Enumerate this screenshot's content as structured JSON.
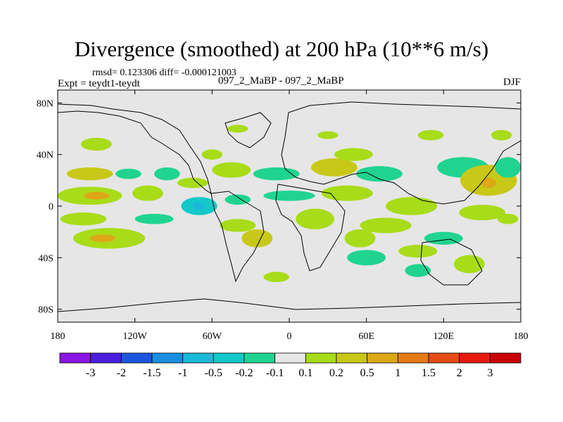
{
  "chart_data": {
    "type": "heatmap",
    "title": "Divergence (smoothed) at 200 hPa (10**6 m/s)",
    "stats_text": "rmsd= 0.123306 diff= -0.000121003",
    "left_label": "Expt = teydt1-teydt",
    "center_label": "097_2_MaBP - 097_2_MaBP",
    "right_label": "DJF",
    "x_axis": {
      "range": [
        -180,
        180
      ],
      "ticks": [
        -180,
        -120,
        -60,
        0,
        60,
        120,
        180
      ],
      "tick_labels": [
        "180",
        "120W",
        "60W",
        "0",
        "60E",
        "120E",
        "180"
      ]
    },
    "y_axis": {
      "range": [
        -90,
        90
      ],
      "ticks": [
        80,
        40,
        0,
        -40,
        -80
      ],
      "tick_labels": [
        "80N",
        "40N",
        "0",
        "40S",
        "80S"
      ]
    },
    "colorbar": {
      "labels": [
        "-3",
        "-2",
        "-1.5",
        "-1",
        "-0.5",
        "-0.2",
        "-0.1",
        "0.1",
        "0.2",
        "0.5",
        "1",
        "1.5",
        "2",
        "3"
      ],
      "colors": [
        "#8a16e6",
        "#4b1fe0",
        "#1c56e0",
        "#1a8fe0",
        "#1ab8d8",
        "#12c8c8",
        "#20d490",
        "#e6e6e6",
        "#a8dc18",
        "#c8c818",
        "#dca818",
        "#e67a18",
        "#e64c18",
        "#e61a10",
        "#cc0000"
      ]
    },
    "grid": false,
    "field_blobs": [
      {
        "lon": -155,
        "lat": 25,
        "rlon": 18,
        "rlat": 5,
        "level": 2
      },
      {
        "lon": -155,
        "lat": 8,
        "rlon": 25,
        "rlat": 7,
        "level": 1
      },
      {
        "lon": -150,
        "lat": 8,
        "rlon": 10,
        "rlat": 3,
        "level": 3
      },
      {
        "lon": -160,
        "lat": -10,
        "rlon": 18,
        "rlat": 5,
        "level": 1
      },
      {
        "lon": -140,
        "lat": -25,
        "rlon": 28,
        "rlat": 8,
        "level": 1
      },
      {
        "lon": -145,
        "lat": -25,
        "rlon": 10,
        "rlat": 3,
        "level": 3
      },
      {
        "lon": -150,
        "lat": 48,
        "rlon": 12,
        "rlat": 5,
        "level": 1
      },
      {
        "lon": -125,
        "lat": 25,
        "rlon": 10,
        "rlat": 4,
        "level": -1
      },
      {
        "lon": -110,
        "lat": 10,
        "rlon": 12,
        "rlat": 6,
        "level": 1
      },
      {
        "lon": -105,
        "lat": -10,
        "rlon": 15,
        "rlat": 4,
        "level": -1
      },
      {
        "lon": -95,
        "lat": 25,
        "rlon": 10,
        "rlat": 5,
        "level": -1
      },
      {
        "lon": -75,
        "lat": 18,
        "rlon": 12,
        "rlat": 4,
        "level": 1
      },
      {
        "lon": -70,
        "lat": 0,
        "rlon": 14,
        "rlat": 7,
        "level": -2
      },
      {
        "lon": -70,
        "lat": 0,
        "rlon": 5,
        "rlat": 3,
        "level": -3
      },
      {
        "lon": -45,
        "lat": 28,
        "rlon": 15,
        "rlat": 6,
        "level": 1
      },
      {
        "lon": -40,
        "lat": 5,
        "rlon": 10,
        "rlat": 4,
        "level": -1
      },
      {
        "lon": -40,
        "lat": -15,
        "rlon": 14,
        "rlat": 5,
        "level": 1
      },
      {
        "lon": -25,
        "lat": -25,
        "rlon": 12,
        "rlat": 7,
        "level": 2
      },
      {
        "lon": -10,
        "lat": 25,
        "rlon": 18,
        "rlat": 5,
        "level": -1
      },
      {
        "lon": -60,
        "lat": 40,
        "rlon": 8,
        "rlat": 4,
        "level": 1
      },
      {
        "lon": 0,
        "lat": 8,
        "rlon": 20,
        "rlat": 4,
        "level": -1
      },
      {
        "lon": 20,
        "lat": -10,
        "rlon": 15,
        "rlat": 8,
        "level": 1
      },
      {
        "lon": 35,
        "lat": 30,
        "rlon": 18,
        "rlat": 7,
        "level": 2
      },
      {
        "lon": 50,
        "lat": 40,
        "rlon": 15,
        "rlat": 5,
        "level": 1
      },
      {
        "lon": 45,
        "lat": 10,
        "rlon": 20,
        "rlat": 6,
        "level": 1
      },
      {
        "lon": 70,
        "lat": 25,
        "rlon": 18,
        "rlat": 6,
        "level": -1
      },
      {
        "lon": 75,
        "lat": -15,
        "rlon": 20,
        "rlat": 6,
        "level": 1
      },
      {
        "lon": 55,
        "lat": -25,
        "rlon": 12,
        "rlat": 7,
        "level": 1
      },
      {
        "lon": 60,
        "lat": -40,
        "rlon": 15,
        "rlat": 6,
        "level": -1
      },
      {
        "lon": 95,
        "lat": 0,
        "rlon": 20,
        "rlat": 7,
        "level": 1
      },
      {
        "lon": 100,
        "lat": -35,
        "rlon": 15,
        "rlat": 5,
        "level": 1
      },
      {
        "lon": 120,
        "lat": -25,
        "rlon": 15,
        "rlat": 5,
        "level": -1
      },
      {
        "lon": 135,
        "lat": 30,
        "rlon": 20,
        "rlat": 8,
        "level": -1
      },
      {
        "lon": 155,
        "lat": 20,
        "rlon": 22,
        "rlat": 12,
        "level": 2
      },
      {
        "lon": 155,
        "lat": 18,
        "rlon": 6,
        "rlat": 4,
        "level": 3
      },
      {
        "lon": 170,
        "lat": 30,
        "rlon": 10,
        "rlat": 8,
        "level": -1
      },
      {
        "lon": 150,
        "lat": -5,
        "rlon": 18,
        "rlat": 6,
        "level": 1
      },
      {
        "lon": 140,
        "lat": -45,
        "rlon": 12,
        "rlat": 7,
        "level": 1
      },
      {
        "lon": 170,
        "lat": -10,
        "rlon": 8,
        "rlat": 4,
        "level": 1
      },
      {
        "lon": 110,
        "lat": 55,
        "rlon": 10,
        "rlat": 4,
        "level": 1
      },
      {
        "lon": 165,
        "lat": 55,
        "rlon": 8,
        "rlat": 4,
        "level": 1
      },
      {
        "lon": -40,
        "lat": 60,
        "rlon": 8,
        "rlat": 3,
        "level": 1
      },
      {
        "lon": 30,
        "lat": 55,
        "rlon": 8,
        "rlat": 3,
        "level": 1
      },
      {
        "lon": -10,
        "lat": -55,
        "rlon": 10,
        "rlat": 4,
        "level": 1
      },
      {
        "lon": 100,
        "lat": -50,
        "rlon": 10,
        "rlat": 5,
        "level": -1
      }
    ]
  }
}
